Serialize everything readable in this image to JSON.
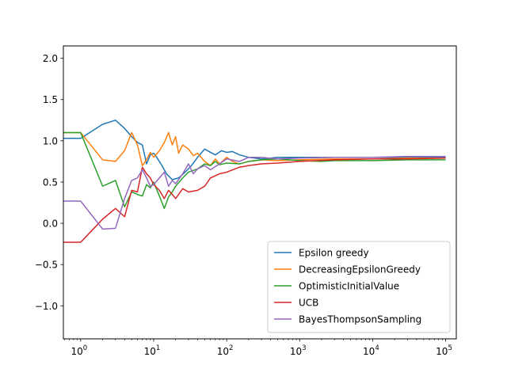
{
  "chart_data": {
    "type": "line",
    "xscale": "log",
    "xlim": [
      0.58,
      140000
    ],
    "ylim": [
      -1.4,
      2.15
    ],
    "grid": false,
    "legend_position": "lower-right",
    "xticks": [
      {
        "value": 1,
        "base": "10",
        "exp": "0"
      },
      {
        "value": 10,
        "base": "10",
        "exp": "1"
      },
      {
        "value": 100,
        "base": "10",
        "exp": "2"
      },
      {
        "value": 1000,
        "base": "10",
        "exp": "3"
      },
      {
        "value": 10000,
        "base": "10",
        "exp": "4"
      },
      {
        "value": 100000,
        "base": "10",
        "exp": "5"
      }
    ],
    "yticks": [
      {
        "value": 2.0,
        "label": "2.0"
      },
      {
        "value": 1.5,
        "label": "1.5"
      },
      {
        "value": 1.0,
        "label": "1.0"
      },
      {
        "value": 0.5,
        "label": "0.5"
      },
      {
        "value": 0.0,
        "label": "0.0"
      },
      {
        "value": -0.5,
        "label": "−0.5"
      },
      {
        "value": -1.0,
        "label": "−1.0"
      }
    ],
    "series": [
      {
        "name": "Epsilon greedy",
        "color": "#1f77b4",
        "points": [
          [
            0.58,
            1.03
          ],
          [
            1,
            1.03
          ],
          [
            2,
            1.2
          ],
          [
            3,
            1.25
          ],
          [
            4,
            1.15
          ],
          [
            5,
            1.05
          ],
          [
            6,
            0.98
          ],
          [
            7,
            0.95
          ],
          [
            8,
            0.72
          ],
          [
            9,
            0.83
          ],
          [
            10,
            0.85
          ],
          [
            11,
            0.8
          ],
          [
            13,
            0.7
          ],
          [
            15,
            0.6
          ],
          [
            18,
            0.53
          ],
          [
            22,
            0.55
          ],
          [
            27,
            0.62
          ],
          [
            33,
            0.7
          ],
          [
            40,
            0.8
          ],
          [
            50,
            0.9
          ],
          [
            60,
            0.86
          ],
          [
            70,
            0.83
          ],
          [
            85,
            0.88
          ],
          [
            100,
            0.86
          ],
          [
            120,
            0.87
          ],
          [
            150,
            0.83
          ],
          [
            200,
            0.8
          ],
          [
            300,
            0.78
          ],
          [
            500,
            0.8
          ],
          [
            1000,
            0.8
          ],
          [
            3000,
            0.8
          ],
          [
            10000,
            0.8
          ],
          [
            30000,
            0.8
          ],
          [
            100000,
            0.8
          ]
        ]
      },
      {
        "name": "DecreasingEpsilonGreedy",
        "color": "#ff7f0e",
        "points": [
          [
            0.58,
            1.1
          ],
          [
            1,
            1.1
          ],
          [
            2,
            0.77
          ],
          [
            3,
            0.75
          ],
          [
            4,
            0.88
          ],
          [
            5,
            1.1
          ],
          [
            6,
            0.95
          ],
          [
            7,
            0.7
          ],
          [
            8,
            0.77
          ],
          [
            9,
            0.86
          ],
          [
            10,
            0.8
          ],
          [
            12,
            0.88
          ],
          [
            14,
            0.98
          ],
          [
            16,
            1.1
          ],
          [
            18,
            0.95
          ],
          [
            20,
            1.05
          ],
          [
            22,
            0.85
          ],
          [
            25,
            0.95
          ],
          [
            30,
            0.9
          ],
          [
            35,
            0.82
          ],
          [
            40,
            0.85
          ],
          [
            50,
            0.75
          ],
          [
            60,
            0.7
          ],
          [
            70,
            0.78
          ],
          [
            80,
            0.72
          ],
          [
            100,
            0.8
          ],
          [
            120,
            0.75
          ],
          [
            150,
            0.72
          ],
          [
            200,
            0.75
          ],
          [
            300,
            0.77
          ],
          [
            500,
            0.76
          ],
          [
            1000,
            0.77
          ],
          [
            3000,
            0.78
          ],
          [
            10000,
            0.78
          ],
          [
            30000,
            0.79
          ],
          [
            100000,
            0.79
          ]
        ]
      },
      {
        "name": "OptimisticInitialValue",
        "color": "#2ca02c",
        "points": [
          [
            0.58,
            1.1
          ],
          [
            1,
            1.1
          ],
          [
            2,
            0.45
          ],
          [
            3,
            0.52
          ],
          [
            4,
            0.2
          ],
          [
            5,
            0.38
          ],
          [
            6,
            0.35
          ],
          [
            7,
            0.33
          ],
          [
            8,
            0.47
          ],
          [
            9,
            0.43
          ],
          [
            10,
            0.5
          ],
          [
            12,
            0.33
          ],
          [
            14,
            0.18
          ],
          [
            16,
            0.32
          ],
          [
            18,
            0.38
          ],
          [
            20,
            0.45
          ],
          [
            25,
            0.55
          ],
          [
            30,
            0.62
          ],
          [
            40,
            0.66
          ],
          [
            50,
            0.72
          ],
          [
            60,
            0.7
          ],
          [
            70,
            0.75
          ],
          [
            80,
            0.71
          ],
          [
            100,
            0.73
          ],
          [
            150,
            0.72
          ],
          [
            200,
            0.75
          ],
          [
            300,
            0.77
          ],
          [
            500,
            0.78
          ],
          [
            1000,
            0.76
          ],
          [
            2000,
            0.75
          ],
          [
            3000,
            0.76
          ],
          [
            10000,
            0.76
          ],
          [
            30000,
            0.77
          ],
          [
            100000,
            0.77
          ]
        ]
      },
      {
        "name": "UCB",
        "color": "#d62728",
        "points": [
          [
            0.58,
            -0.23
          ],
          [
            1,
            -0.23
          ],
          [
            2,
            0.05
          ],
          [
            3,
            0.18
          ],
          [
            4,
            0.08
          ],
          [
            5,
            0.4
          ],
          [
            6,
            0.38
          ],
          [
            7,
            0.68
          ],
          [
            8,
            0.6
          ],
          [
            9,
            0.55
          ],
          [
            10,
            0.47
          ],
          [
            12,
            0.4
          ],
          [
            14,
            0.3
          ],
          [
            16,
            0.4
          ],
          [
            18,
            0.35
          ],
          [
            20,
            0.3
          ],
          [
            25,
            0.42
          ],
          [
            30,
            0.38
          ],
          [
            40,
            0.4
          ],
          [
            50,
            0.45
          ],
          [
            60,
            0.55
          ],
          [
            80,
            0.6
          ],
          [
            100,
            0.62
          ],
          [
            150,
            0.68
          ],
          [
            200,
            0.7
          ],
          [
            300,
            0.72
          ],
          [
            500,
            0.73
          ],
          [
            1000,
            0.75
          ],
          [
            3000,
            0.77
          ],
          [
            10000,
            0.78
          ],
          [
            30000,
            0.78
          ],
          [
            100000,
            0.79
          ]
        ]
      },
      {
        "name": "BayesThompsonSampling",
        "color": "#9467bd",
        "points": [
          [
            0.58,
            0.27
          ],
          [
            1,
            0.27
          ],
          [
            2,
            -0.07
          ],
          [
            3,
            -0.06
          ],
          [
            4,
            0.3
          ],
          [
            5,
            0.52
          ],
          [
            6,
            0.55
          ],
          [
            7,
            0.65
          ],
          [
            8,
            0.55
          ],
          [
            9,
            0.45
          ],
          [
            10,
            0.47
          ],
          [
            12,
            0.55
          ],
          [
            14,
            0.62
          ],
          [
            16,
            0.45
          ],
          [
            18,
            0.52
          ],
          [
            20,
            0.48
          ],
          [
            25,
            0.6
          ],
          [
            30,
            0.72
          ],
          [
            35,
            0.6
          ],
          [
            40,
            0.66
          ],
          [
            50,
            0.7
          ],
          [
            60,
            0.65
          ],
          [
            80,
            0.72
          ],
          [
            100,
            0.78
          ],
          [
            150,
            0.75
          ],
          [
            200,
            0.8
          ],
          [
            300,
            0.8
          ],
          [
            500,
            0.78
          ],
          [
            1000,
            0.79
          ],
          [
            3000,
            0.8
          ],
          [
            10000,
            0.8
          ],
          [
            30000,
            0.81
          ],
          [
            100000,
            0.81
          ]
        ]
      }
    ]
  }
}
